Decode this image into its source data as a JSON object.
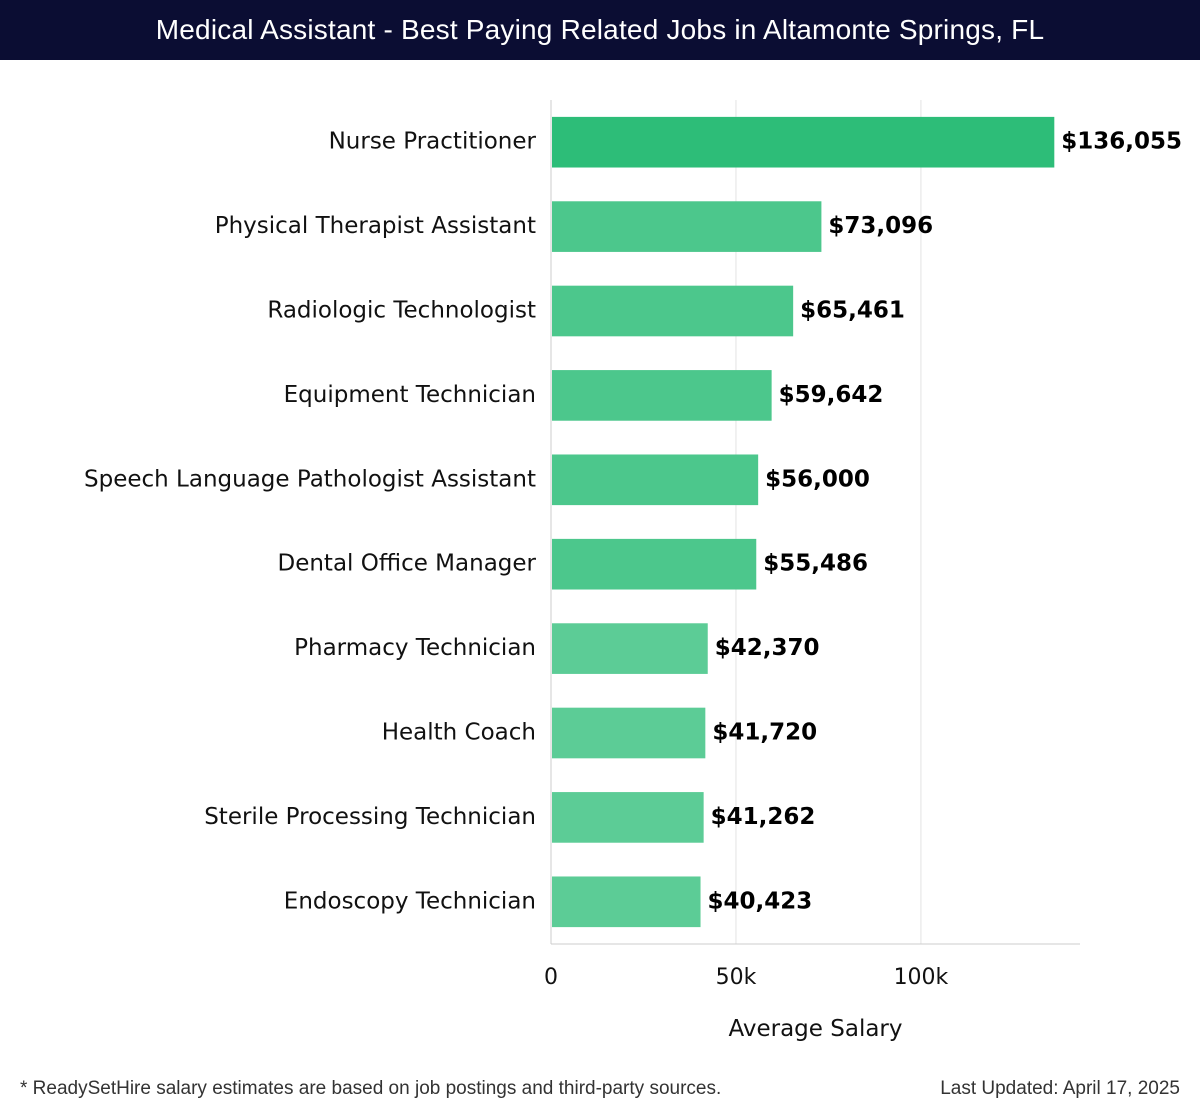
{
  "header": {
    "title": "Medical Assistant - Best Paying Related Jobs in Altamonte Springs, FL"
  },
  "chart_data": {
    "type": "bar",
    "orientation": "horizontal",
    "categories": [
      "Nurse Practitioner",
      "Physical Therapist Assistant",
      "Radiologic Technologist",
      "Equipment Technician",
      "Speech Language Pathologist Assistant",
      "Dental Office Manager",
      "Pharmacy Technician",
      "Health Coach",
      "Sterile Processing Technician",
      "Endoscopy Technician"
    ],
    "values": [
      136055,
      73096,
      65461,
      59642,
      56000,
      55486,
      42370,
      41720,
      41262,
      40423
    ],
    "value_labels": [
      "$136,055",
      "$73,096",
      "$65,461",
      "$59,642",
      "$56,000",
      "$55,486",
      "$42,370",
      "$41,720",
      "$41,262",
      "$40,423"
    ],
    "xlabel": "Average Salary",
    "ylabel": "",
    "xlim": [
      0,
      143000
    ],
    "x_ticks": [
      0,
      50000,
      100000
    ],
    "x_tick_labels": [
      "0",
      "50k",
      "100k"
    ],
    "grid": true,
    "legend": false,
    "colors": {
      "top_bar": "#2dbd78",
      "bar": "#4cc78c",
      "bar_light": "#5ccc96",
      "grid": "#e3e3e3",
      "axis": "#cccccc",
      "text": "#111111"
    }
  },
  "footer": {
    "note": "* ReadySetHire salary estimates are based on job postings and third-party sources.",
    "updated": "Last Updated: April 17, 2025"
  }
}
